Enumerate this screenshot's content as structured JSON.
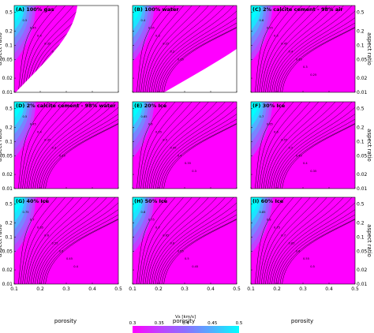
{
  "figure": {
    "xlabel": "porosity",
    "ylabel": "aspect ratio",
    "colorbar": {
      "label": "Vs [km/s]",
      "ticks": [
        "0.3",
        "0.35",
        "0.4",
        "0.45",
        "0.5"
      ],
      "min": 0.3,
      "max": 0.5,
      "colors": [
        "#ff00ff",
        "#c040ff",
        "#8a70ff",
        "#50b0ff",
        "#00ffff"
      ]
    },
    "x_ticks": [
      "0.1",
      "0.2",
      "0.3",
      "0.4",
      "0.5"
    ],
    "y_ticks": [
      "0.5",
      "0.2",
      "0.1",
      "0.05",
      "0.02",
      "0.01"
    ]
  },
  "chart_data": [
    {
      "type": "heatmap",
      "title": "(A) 100% gas",
      "xlim": [
        0.1,
        0.5
      ],
      "ylim": [
        0.01,
        0.7
      ],
      "yscale": "log",
      "variable": "Vs [km/s]",
      "contour_labels": [
        "0.5",
        "0.45",
        "0.4",
        "0.35",
        "0.3",
        "0.25",
        "0.2"
      ],
      "max_value": 0.5,
      "undefined_region": "lower-right (white)"
    },
    {
      "type": "heatmap",
      "title": "(B) 100% water",
      "xlim": [
        0.1,
        0.5
      ],
      "ylim": [
        0.01,
        0.7
      ],
      "yscale": "log",
      "variable": "Vs [km/s]",
      "contour_labels": [
        "0.4",
        "0.35",
        "0.3",
        "0.25",
        "0.2",
        "0.15"
      ],
      "max_value": 0.4,
      "undefined_region": "lower-right (white)"
    },
    {
      "type": "heatmap",
      "title": "(C) 2% calcite cement - 98% air",
      "xlim": [
        0.1,
        0.5
      ],
      "ylim": [
        0.01,
        0.7
      ],
      "yscale": "log",
      "variable": "Vs [km/s]",
      "contour_labels": [
        "0.6",
        "0.55",
        "0.5",
        "0.45",
        "0.4",
        "0.35",
        "0.3",
        "0.25"
      ],
      "max_value": 0.6
    },
    {
      "type": "heatmap",
      "title": "(D) 2% calcite cement - 98% water",
      "xlim": [
        0.1,
        0.5
      ],
      "ylim": [
        0.01,
        0.7
      ],
      "yscale": "log",
      "variable": "Vs [km/s]",
      "contour_labels": [
        "0.5",
        "0.45",
        "0.4",
        "0.35",
        "0.3",
        "0.25"
      ],
      "max_value": 0.5
    },
    {
      "type": "heatmap",
      "title": "(E) 20% Ice",
      "xlim": [
        0.1,
        0.5
      ],
      "ylim": [
        0.01,
        0.7
      ],
      "yscale": "log",
      "variable": "Vs [km/s]",
      "contour_labels": [
        "0.65",
        "0.6",
        "0.55",
        "0.5",
        "0.45",
        "0.4",
        "0.35",
        "0.3"
      ],
      "max_value": 0.65
    },
    {
      "type": "heatmap",
      "title": "(F) 30% Ice",
      "xlim": [
        0.1,
        0.5
      ],
      "ylim": [
        0.01,
        0.7
      ],
      "yscale": "log",
      "variable": "Vs [km/s]",
      "contour_labels": [
        "0.7",
        "0.65",
        "0.6",
        "0.55",
        "0.5",
        "0.45",
        "0.4",
        "0.35"
      ],
      "max_value": 0.7
    },
    {
      "type": "heatmap",
      "title": "(G) 40% Ice",
      "xlim": [
        0.1,
        0.5
      ],
      "ylim": [
        0.01,
        0.7
      ],
      "yscale": "log",
      "variable": "Vs [km/s]",
      "contour_labels": [
        "0.75",
        "0.7",
        "0.65",
        "0.6",
        "0.55",
        "0.5",
        "0.45",
        "0.4"
      ],
      "max_value": 0.75
    },
    {
      "type": "heatmap",
      "title": "(H) 50% Ice",
      "xlim": [
        0.1,
        0.5
      ],
      "ylim": [
        0.01,
        0.7
      ],
      "yscale": "log",
      "variable": "Vs [km/s]",
      "contour_labels": [
        "0.8",
        "0.75",
        "0.7",
        "0.65",
        "0.6",
        "0.55",
        "0.5",
        "0.45"
      ],
      "max_value": 0.8
    },
    {
      "type": "heatmap",
      "title": "(I) 60% Ice",
      "xlim": [
        0.1,
        0.5
      ],
      "ylim": [
        0.01,
        0.7
      ],
      "yscale": "log",
      "variable": "Vs [km/s]",
      "contour_labels": [
        "0.85",
        "0.8",
        "0.75",
        "0.7",
        "0.65",
        "0.6",
        "0.55",
        "0.5"
      ],
      "max_value": 0.85
    }
  ]
}
